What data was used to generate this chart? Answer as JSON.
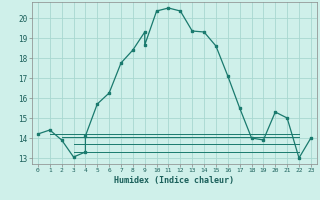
{
  "xlabel": "Humidex (Indice chaleur)",
  "bg_color": "#cff0ea",
  "grid_color": "#a8d8d0",
  "line_color": "#1a7a6e",
  "xlim": [
    -0.5,
    23.5
  ],
  "ylim": [
    12.7,
    20.8
  ],
  "xticks": [
    0,
    1,
    2,
    3,
    4,
    5,
    6,
    7,
    8,
    9,
    10,
    11,
    12,
    13,
    14,
    15,
    16,
    17,
    18,
    19,
    20,
    21,
    22,
    23
  ],
  "yticks": [
    13,
    14,
    15,
    16,
    17,
    18,
    19,
    20
  ],
  "main_x": [
    0,
    1,
    2,
    3,
    4,
    4,
    5,
    6,
    7,
    8,
    9,
    9,
    10,
    11,
    12,
    13,
    14,
    15,
    16,
    17,
    18,
    19,
    20,
    21,
    22,
    23
  ],
  "main_y": [
    14.2,
    14.4,
    13.9,
    13.05,
    13.3,
    14.1,
    15.7,
    16.25,
    17.75,
    18.4,
    19.3,
    18.65,
    20.35,
    20.5,
    20.35,
    19.35,
    19.3,
    18.6,
    17.1,
    15.5,
    14.0,
    13.9,
    15.3,
    15.0,
    13.0,
    14.0
  ],
  "flat_lines": [
    {
      "x0": 1,
      "x1": 22,
      "y": 14.2
    },
    {
      "x0": 2,
      "x1": 22,
      "y": 14.05
    },
    {
      "x0": 3,
      "x1": 22,
      "y": 13.7
    },
    {
      "x0": 3,
      "x1": 22,
      "y": 13.3
    }
  ]
}
